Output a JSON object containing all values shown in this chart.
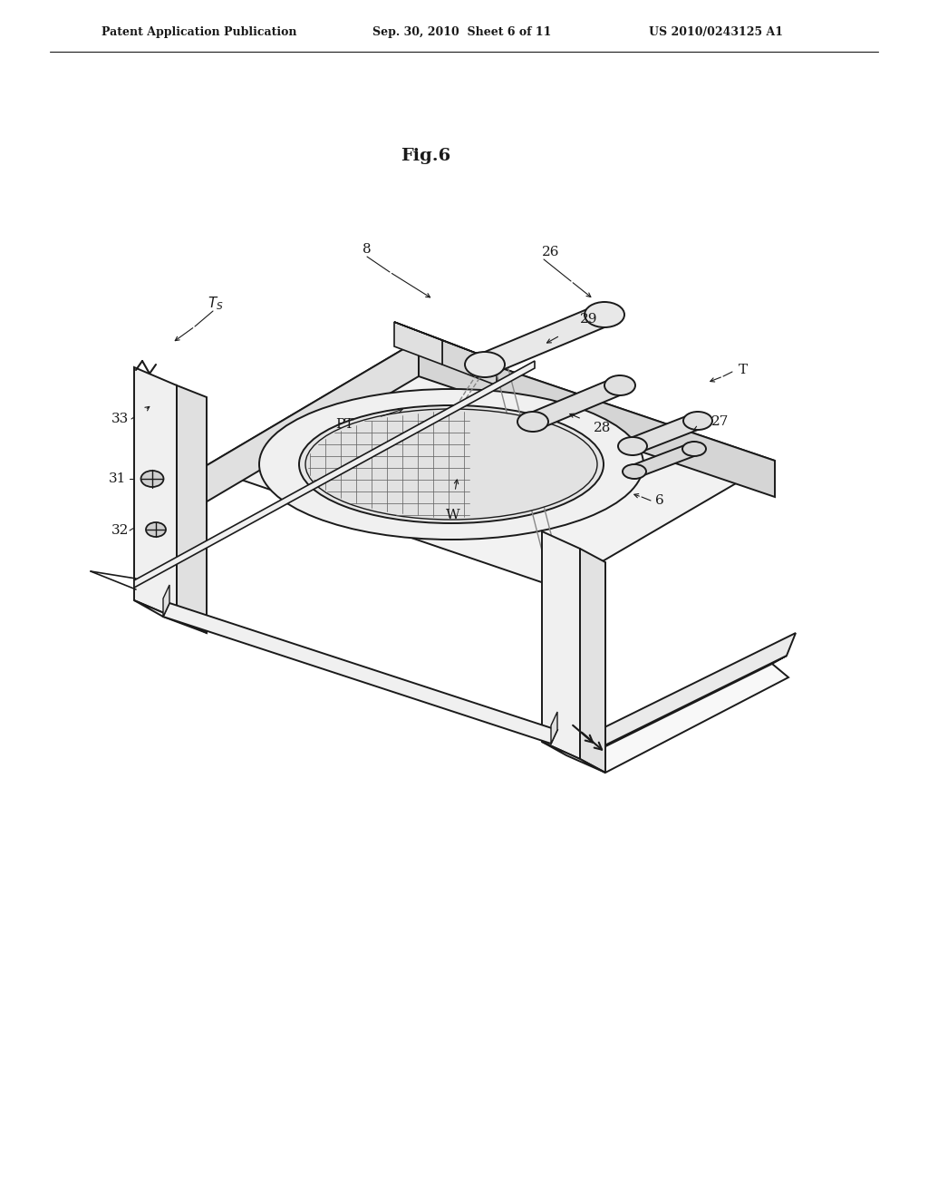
{
  "background_color": "#ffffff",
  "line_color": "#1a1a1a",
  "header_left": "Patent Application Publication",
  "header_mid": "Sep. 30, 2010  Sheet 6 of 11",
  "header_right": "US 2010/0243125 A1",
  "fig_title": "Fig.6"
}
